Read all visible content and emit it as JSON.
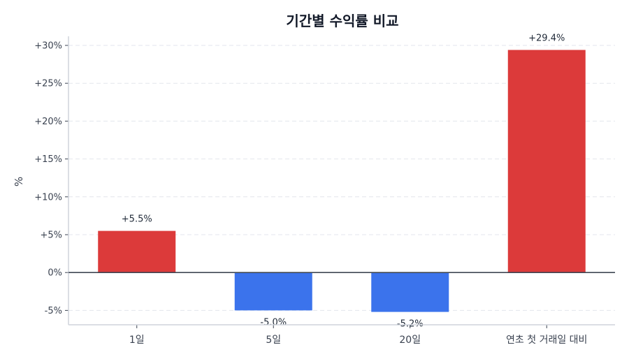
{
  "chart_data": {
    "type": "bar",
    "title": "기간별 수익률 비교",
    "xlabel": "",
    "ylabel": "%",
    "categories": [
      "1일",
      "5일",
      "20일",
      "연초 첫 거래일 대비"
    ],
    "values": [
      5.5,
      -5.0,
      -5.2,
      29.4
    ],
    "data_labels": [
      "+5.5%",
      "-5.0%",
      "-5.2%",
      "+29.4%"
    ],
    "yticks": [
      -5,
      0,
      5,
      10,
      15,
      20,
      25,
      30
    ],
    "ytick_labels": [
      "-5%",
      "0%",
      "+5%",
      "+10%",
      "+15%",
      "+20%",
      "+25%",
      "+30%"
    ],
    "ylim": [
      -6.9,
      31.2
    ],
    "grid": true,
    "colors": {
      "positive": "#DC3A3A",
      "negative": "#3B73EC",
      "zero_line": "#3f4753",
      "grid": "#e3e6ec",
      "axis": "#cfd4dc"
    }
  }
}
